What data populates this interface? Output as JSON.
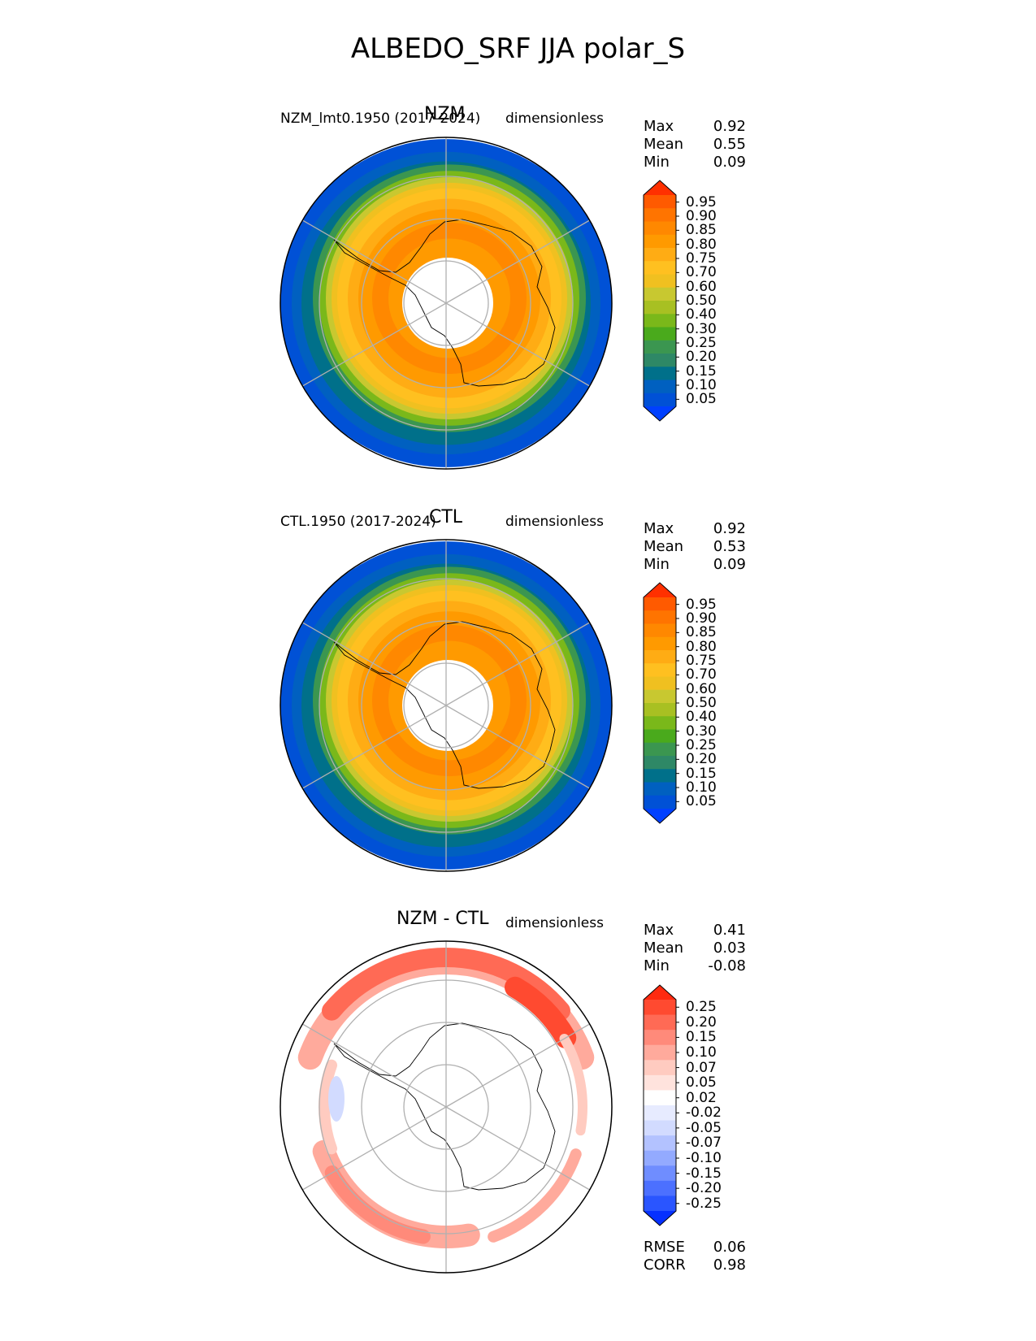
{
  "title": "ALBEDO_SRF JJA polar_S",
  "colors": {
    "seq": [
      "#0040ff",
      "#0051d6",
      "#0060c0",
      "#00708a",
      "#2e8866",
      "#3b9650",
      "#4aaa1c",
      "#7ab81a",
      "#a8c022",
      "#c8c830",
      "#f0c020",
      "#ffc020",
      "#ffac14",
      "#ff9a00",
      "#ff8800",
      "#ff7400",
      "#ff5a00",
      "#ff3000"
    ],
    "div": [
      "#0530ff",
      "#2a55ff",
      "#4c70ff",
      "#6f8dff",
      "#93aaff",
      "#b3c2ff",
      "#d2dbff",
      "#e7ebff",
      "#ffffff",
      "#ffe3dd",
      "#ffcbc0",
      "#ffaa9c",
      "#ff8a7a",
      "#ff6a55",
      "#ff4a30",
      "#ff2a10"
    ]
  },
  "panels": [
    {
      "title": "NZM",
      "left_label": "NZM_lmt0.1950 (2017-2024)",
      "right_label": "dimensionless",
      "stats": [
        {
          "name": "Max",
          "value": "0.92"
        },
        {
          "name": "Mean",
          "value": "0.55"
        },
        {
          "name": "Min",
          "value": "0.09"
        }
      ],
      "cbar_ticks": [
        "0.95",
        "0.90",
        "0.85",
        "0.80",
        "0.75",
        "0.70",
        "0.60",
        "0.50",
        "0.40",
        "0.30",
        "0.25",
        "0.20",
        "0.15",
        "0.10",
        "0.05"
      ]
    },
    {
      "title": "CTL",
      "left_label": "CTL.1950 (2017-2024)",
      "right_label": "dimensionless",
      "stats": [
        {
          "name": "Max",
          "value": "0.92"
        },
        {
          "name": "Mean",
          "value": "0.53"
        },
        {
          "name": "Min",
          "value": "0.09"
        }
      ],
      "cbar_ticks": [
        "0.95",
        "0.90",
        "0.85",
        "0.80",
        "0.75",
        "0.70",
        "0.60",
        "0.50",
        "0.40",
        "0.30",
        "0.25",
        "0.20",
        "0.15",
        "0.10",
        "0.05"
      ]
    },
    {
      "title": "NZM - CTL",
      "left_label": "",
      "right_label": "dimensionless",
      "stats": [
        {
          "name": "Max",
          "value": "0.41"
        },
        {
          "name": "Mean",
          "value": "0.03"
        },
        {
          "name": "Min",
          "value": "-0.08"
        }
      ],
      "cbar_ticks": [
        "0.25",
        "0.20",
        "0.15",
        "0.10",
        "0.07",
        "0.05",
        "0.02",
        "-0.02",
        "-0.05",
        "-0.07",
        "-0.10",
        "-0.15",
        "-0.20",
        "-0.25"
      ],
      "extra_stats": [
        {
          "name": "RMSE",
          "value": "0.06"
        },
        {
          "name": "CORR",
          "value": "0.98"
        }
      ]
    }
  ],
  "chart_data": [
    {
      "type": "heatmap",
      "projection": "polar_S",
      "title": "NZM",
      "field": "ALBEDO_SRF",
      "season": "JJA",
      "units": "dimensionless",
      "max": 0.92,
      "mean": 0.55,
      "min": 0.09,
      "levels": [
        0.05,
        0.1,
        0.15,
        0.2,
        0.25,
        0.3,
        0.4,
        0.5,
        0.6,
        0.7,
        0.75,
        0.8,
        0.85,
        0.9,
        0.95
      ]
    },
    {
      "type": "heatmap",
      "projection": "polar_S",
      "title": "CTL",
      "field": "ALBEDO_SRF",
      "season": "JJA",
      "units": "dimensionless",
      "max": 0.92,
      "mean": 0.53,
      "min": 0.09,
      "levels": [
        0.05,
        0.1,
        0.15,
        0.2,
        0.25,
        0.3,
        0.4,
        0.5,
        0.6,
        0.7,
        0.75,
        0.8,
        0.85,
        0.9,
        0.95
      ]
    },
    {
      "type": "heatmap",
      "projection": "polar_S",
      "title": "NZM - CTL",
      "field": "ALBEDO_SRF",
      "season": "JJA",
      "units": "dimensionless",
      "max": 0.41,
      "mean": 0.03,
      "min": -0.08,
      "rmse": 0.06,
      "corr": 0.98,
      "levels": [
        -0.25,
        -0.2,
        -0.15,
        -0.1,
        -0.07,
        -0.05,
        -0.02,
        0.02,
        0.05,
        0.07,
        0.1,
        0.15,
        0.2,
        0.25
      ]
    }
  ]
}
